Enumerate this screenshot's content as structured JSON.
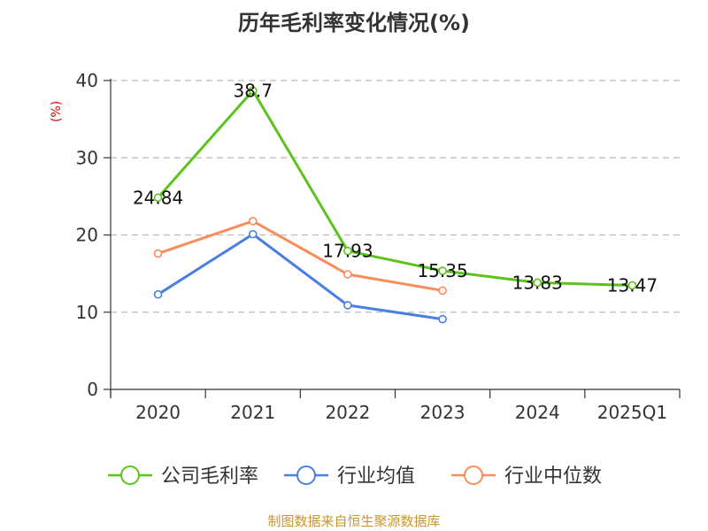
{
  "chart_data": {
    "type": "line",
    "title": "历年毛利率变化情况(%)",
    "ylabel": "(%)",
    "xlabel": "",
    "categories": [
      "2020",
      "2021",
      "2022",
      "2023",
      "2024",
      "2025Q1"
    ],
    "ylim": [
      0,
      40
    ],
    "yticks": [
      0,
      10,
      20,
      30,
      40
    ],
    "grid": true,
    "legend_position": "bottom",
    "series": [
      {
        "name": "公司毛利率",
        "color": "#5cc21c",
        "values": [
          24.84,
          38.7,
          17.93,
          15.35,
          13.83,
          13.47
        ],
        "labels": [
          "24.84",
          "38.7",
          "17.93",
          "15.35",
          "13.83",
          "13.47"
        ]
      },
      {
        "name": "行业均值",
        "color": "#4a7fe0",
        "values": [
          12.3,
          20.1,
          10.9,
          9.1,
          null,
          null
        ]
      },
      {
        "name": "行业中位数",
        "color": "#fa8c5a",
        "values": [
          17.6,
          21.8,
          14.9,
          12.8,
          null,
          null
        ]
      }
    ],
    "source": "制图数据来自恒生聚源数据库"
  }
}
